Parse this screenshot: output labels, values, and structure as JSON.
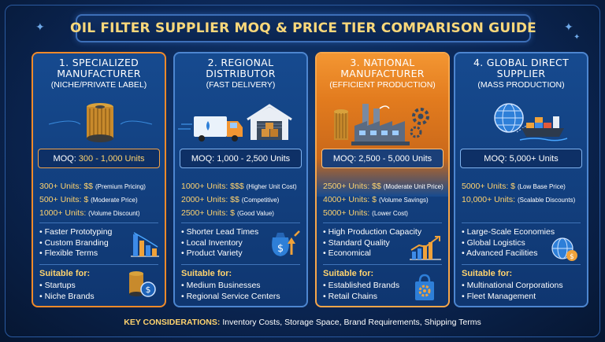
{
  "title": "OIL FILTER SUPPLIER MOQ & PRICE TIER COMPARISON GUIDE",
  "cards": [
    {
      "name_lines": [
        "1. SPECIALIZED",
        "MANUFACTURER"
      ],
      "sub": "(NICHE/PRIVATE LABEL)",
      "moq_key": "MOQ:",
      "moq_val": "300 - 1,000 Units",
      "tiers": [
        {
          "u": "300+ Units: $$",
          "n": "(Premium Pricing)"
        },
        {
          "u": "500+ Units: $",
          "n": "(Moderate Price)"
        },
        {
          "u": "1000+ Units:",
          "n": "(Volume Discount)"
        }
      ],
      "features": [
        "Faster Prototyping",
        "Custom Branding",
        "Flexible Terms"
      ],
      "suitable_title": "Suitable for:",
      "suitable": [
        "Startups",
        "Niche Brands"
      ]
    },
    {
      "name_lines": [
        "2. REGIONAL",
        "DISTRIBUTOR"
      ],
      "sub": "(FAST DELIVERY)",
      "moq_key": "MOQ:",
      "moq_val": "1,000 - 2,500 Units",
      "tiers": [
        {
          "u": "1000+ Units: $$$",
          "n": "(Higher Unit Cost)"
        },
        {
          "u": "2000+ Units: $$",
          "n": "(Competitive)"
        },
        {
          "u": "2500+ Units: $",
          "n": "(Good Value)"
        }
      ],
      "features": [
        "Shorter Lead Times",
        "Local Inventory",
        "Product Variety"
      ],
      "suitable_title": "Suitable for:",
      "suitable": [
        "Medium Businesses",
        "Regional Service Centers"
      ]
    },
    {
      "name_lines": [
        "3. NATIONAL",
        "MANUFACTURER"
      ],
      "sub": "(EFFICIENT PRODUCTION)",
      "moq_key": "MOQ:",
      "moq_val": "2,500 - 5,000 Units",
      "tiers": [
        {
          "u": "2500+ Units: $$",
          "n": "(Moderate Unit Price)"
        },
        {
          "u": "4000+ Units: $",
          "n": "(Volume Savings)"
        },
        {
          "u": "5000+ Units:",
          "n": "(Lower Cost)"
        }
      ],
      "features": [
        "High Production Capacity",
        "Standard Quality",
        "Economical"
      ],
      "suitable_title": "Suitable for:",
      "suitable": [
        "Established Brands",
        "Retail Chains"
      ]
    },
    {
      "name_lines": [
        "4. GLOBAL DIRECT",
        "SUPPLIER"
      ],
      "sub": "(MASS PRODUCTION)",
      "moq_key": "MOQ:",
      "moq_val": "5,000+ Units",
      "tiers": [
        {
          "u": "5000+ Units: $",
          "n": "(Low Base Price)"
        },
        {
          "u": "10,000+ Units:",
          "n": "(Scalable Discounts)"
        }
      ],
      "features": [
        "Large-Scale Economies",
        "Global Logistics",
        "Advanced Facilities"
      ],
      "suitable_title": "Suitable for:",
      "suitable": [
        "Multinational Corporations",
        "Fleet Management"
      ]
    }
  ],
  "footer_key": "KEY CONSIDERATIONS:",
  "footer_val": "Inventory Costs, Storage Space, Brand Requirements, Shipping Terms"
}
